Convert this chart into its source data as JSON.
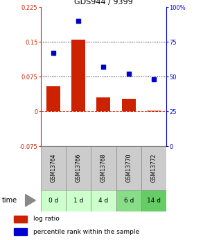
{
  "title": "GDS944 / 9399",
  "categories": [
    "GSM13764",
    "GSM13766",
    "GSM13768",
    "GSM13770",
    "GSM13772"
  ],
  "time_labels": [
    "0 d",
    "1 d",
    "4 d",
    "6 d",
    "14 d"
  ],
  "log_ratio": [
    0.055,
    0.155,
    0.03,
    0.028,
    0.002
  ],
  "percentile_rank": [
    67,
    90,
    57,
    52,
    48
  ],
  "ylim_left": [
    -0.075,
    0.225
  ],
  "ylim_right": [
    0,
    100
  ],
  "yticks_left": [
    -0.075,
    0,
    0.075,
    0.15,
    0.225
  ],
  "ytick_labels_left": [
    "-0.075",
    "0",
    "0.075",
    "0.15",
    "0.225"
  ],
  "yticks_right": [
    0,
    25,
    50,
    75,
    100
  ],
  "ytick_labels_right": [
    "0",
    "25",
    "50",
    "75",
    "100%"
  ],
  "bar_color": "#cc2200",
  "dot_color": "#0000cc",
  "hline_color": "#cc2200",
  "hline_y": 0,
  "dotted_lines": [
    0.075,
    0.15
  ],
  "sample_label_bg": "#cccccc",
  "time_colors": [
    "#ccffcc",
    "#ccffcc",
    "#ccffcc",
    "#88dd88",
    "#66cc66"
  ],
  "legend_bar_label": "log ratio",
  "legend_dot_label": "percentile rank within the sample"
}
